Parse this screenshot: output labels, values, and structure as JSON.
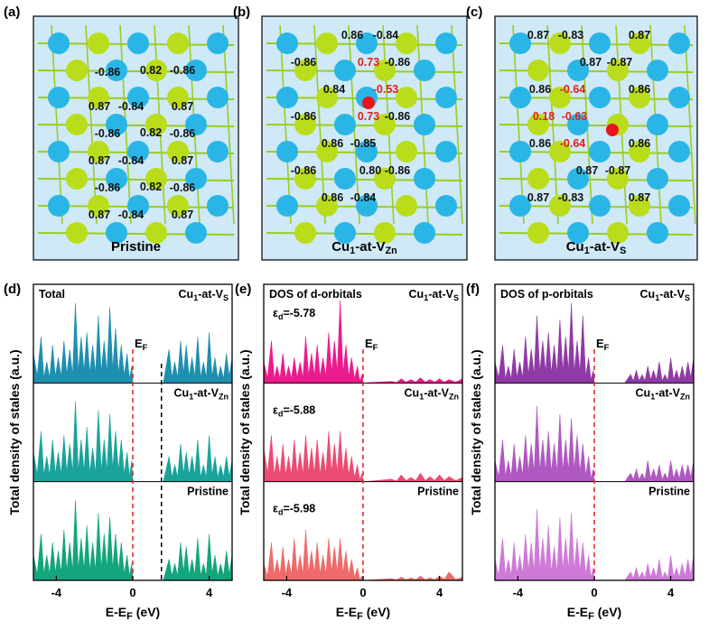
{
  "colors": {
    "zn": "#29b6e6",
    "s": "#b9dd1a",
    "cu": "#e8141c",
    "bond": "#9ccc20",
    "red_label": "#e0201b",
    "ef_line": "#e0201b",
    "vbm_line": "#000000",
    "total": [
      "#1f8fb0",
      "#1aa39a",
      "#14a57c"
    ],
    "d": [
      "#ec1a8c",
      "#ec4b74",
      "#ef6a6a"
    ],
    "p": [
      "#8f3aa6",
      "#b058c2",
      "#cf7ad8"
    ]
  },
  "structures": [
    {
      "panel": "(a)",
      "caption_main": "Pristine",
      "caption_sub": "",
      "labels": [
        {
          "t": "-0.86",
          "red": false
        },
        {
          "t": "0.82",
          "red": false
        },
        {
          "t": "-0.86",
          "red": false
        },
        {
          "t": "0.87",
          "red": false
        },
        {
          "t": "-0.84",
          "red": false
        },
        {
          "t": "0.87",
          "red": false
        },
        {
          "t": "-0.86",
          "red": false
        },
        {
          "t": "0.82",
          "red": false
        },
        {
          "t": "-0.86",
          "red": false
        },
        {
          "t": "0.87",
          "red": false
        },
        {
          "t": "-0.84",
          "red": false
        },
        {
          "t": "0.87",
          "red": false
        },
        {
          "t": "-0.86",
          "red": false
        },
        {
          "t": "0.82",
          "red": false
        },
        {
          "t": "-0.86",
          "red": false
        },
        {
          "t": "0.87",
          "red": false
        },
        {
          "t": "-0.84",
          "red": false
        },
        {
          "t": "0.87",
          "red": false
        }
      ]
    },
    {
      "panel": "(b)",
      "caption_main": "Cu",
      "caption_sub": "1",
      "caption_rest": "-at-V",
      "caption_sub2": "Zn",
      "labels": [
        {
          "t": "0.86",
          "red": false
        },
        {
          "t": "-0.84",
          "red": false
        },
        {
          "t": "-0.86",
          "red": false
        },
        {
          "t": "0.73",
          "red": true
        },
        {
          "t": "-0.86",
          "red": false
        },
        {
          "t": "0.84",
          "red": false
        },
        {
          "t": "-0.53",
          "red": true
        },
        {
          "t": "-0.86",
          "red": false
        },
        {
          "t": "0.73",
          "red": true
        },
        {
          "t": "-0.86",
          "red": false
        },
        {
          "t": "0.86",
          "red": false
        },
        {
          "t": "-0.85",
          "red": false
        },
        {
          "t": "-0.86",
          "red": false
        },
        {
          "t": "0.80",
          "red": false
        },
        {
          "t": "-0.86",
          "red": false
        },
        {
          "t": "0.86",
          "red": false
        },
        {
          "t": "-0.84",
          "red": false
        }
      ]
    },
    {
      "panel": "(c)",
      "caption_main": "Cu",
      "caption_sub": "1",
      "caption_rest": "-at-V",
      "caption_sub2": "S",
      "labels": [
        {
          "t": "0.87",
          "red": false
        },
        {
          "t": "-0.83",
          "red": false
        },
        {
          "t": "0.87",
          "red": false
        },
        {
          "t": "0.87",
          "red": false
        },
        {
          "t": "-0.87",
          "red": false
        },
        {
          "t": "0.86",
          "red": false
        },
        {
          "t": "-0.64",
          "red": true
        },
        {
          "t": "0.86",
          "red": false
        },
        {
          "t": "0.18",
          "red": true
        },
        {
          "t": "-0.63",
          "red": true
        },
        {
          "t": "0.86",
          "red": false
        },
        {
          "t": "-0.64",
          "red": true
        },
        {
          "t": "0.86",
          "red": false
        },
        {
          "t": "0.87",
          "red": false
        },
        {
          "t": "-0.87",
          "red": false
        },
        {
          "t": "0.87",
          "red": false
        },
        {
          "t": "-0.83",
          "red": false
        },
        {
          "t": "0.87",
          "red": false
        }
      ]
    }
  ],
  "chart_data": [
    {
      "type": "area",
      "panel": "(d)",
      "title": "Total",
      "xlabel": "E-E",
      "xlabel_sub": "F",
      "xlabel_unit": " (eV)",
      "ylabel": "Total density of stales (a.u.)",
      "xlim": [
        -5.2,
        5.2
      ],
      "xticks": [
        -4,
        0,
        4
      ],
      "ef_label": "E",
      "ef_sub": "F",
      "ef_x": 0,
      "vbm_x": 1.5,
      "series": [
        {
          "name_main": "Cu",
          "name_sub": "1",
          "name_rest": "-at-V",
          "name_sub2": "S",
          "x": [
            -5.2,
            -4.8,
            -4.5,
            -4.2,
            -3.9,
            -3.6,
            -3.3,
            -3.0,
            -2.7,
            -2.4,
            -2.1,
            -1.8,
            -1.5,
            -1.2,
            -0.9,
            -0.6,
            -0.3,
            -0.05,
            0.0,
            1.6,
            1.9,
            2.2,
            2.5,
            2.8,
            3.1,
            3.4,
            3.7,
            4.0,
            4.3,
            4.6,
            4.9,
            5.2
          ],
          "y": [
            0.35,
            0.55,
            0.25,
            0.45,
            0.3,
            0.5,
            0.4,
            0.95,
            0.55,
            0.6,
            0.45,
            0.8,
            0.5,
            0.9,
            0.65,
            0.45,
            0.35,
            0.2,
            0,
            0,
            0.4,
            0.25,
            0.5,
            0.45,
            0.3,
            0.55,
            0.25,
            0.6,
            0.3,
            0.2,
            0.35,
            0.3
          ]
        },
        {
          "name_main": "Cu",
          "name_sub": "1",
          "name_rest": "-at-V",
          "name_sub2": "Zn",
          "x": [
            -5.2,
            -4.8,
            -4.5,
            -4.2,
            -3.9,
            -3.6,
            -3.3,
            -3.0,
            -2.7,
            -2.4,
            -2.1,
            -1.8,
            -1.5,
            -1.2,
            -0.9,
            -0.6,
            -0.3,
            -0.05,
            0.0,
            1.6,
            1.9,
            2.2,
            2.5,
            2.8,
            3.1,
            3.4,
            3.7,
            4.0,
            4.3,
            4.6,
            4.9,
            5.2
          ],
          "y": [
            0.35,
            0.6,
            0.3,
            0.5,
            0.35,
            0.55,
            0.45,
            0.95,
            0.5,
            0.65,
            0.4,
            0.85,
            0.5,
            0.8,
            0.6,
            0.5,
            0.35,
            0.25,
            0,
            0,
            0.3,
            0.2,
            0.45,
            0.35,
            0.3,
            0.5,
            0.2,
            0.55,
            0.3,
            0.2,
            0.3,
            0.25
          ]
        },
        {
          "name_main": "Pristine",
          "name_sub": "",
          "name_rest": "",
          "name_sub2": "",
          "x": [
            -5.2,
            -4.8,
            -4.5,
            -4.2,
            -3.9,
            -3.6,
            -3.3,
            -3.0,
            -2.7,
            -2.4,
            -2.1,
            -1.8,
            -1.5,
            -1.2,
            -0.9,
            -0.6,
            -0.3,
            -0.05,
            0.0,
            1.6,
            1.9,
            2.2,
            2.5,
            2.8,
            3.1,
            3.4,
            3.7,
            4.0,
            4.3,
            4.6,
            4.9,
            5.2
          ],
          "y": [
            0.3,
            0.55,
            0.3,
            0.45,
            0.35,
            0.6,
            0.45,
            0.95,
            0.5,
            0.65,
            0.45,
            0.8,
            0.55,
            0.75,
            0.55,
            0.45,
            0.3,
            0.2,
            0,
            0,
            0.25,
            0.2,
            0.45,
            0.4,
            0.25,
            0.5,
            0.2,
            0.55,
            0.3,
            0.2,
            0.35,
            0.3
          ]
        }
      ]
    },
    {
      "type": "area",
      "panel": "(e)",
      "title": "DOS of d-orbitals",
      "xlabel": "E-E",
      "xlabel_sub": "F",
      "xlabel_unit": " (eV)",
      "ylabel": "Total density of stales (a.u.)",
      "xlim": [
        -5.2,
        5.2
      ],
      "xticks": [
        -4,
        0,
        4
      ],
      "ef_label": "E",
      "ef_sub": "F",
      "ef_x": 0,
      "series": [
        {
          "name_main": "Cu",
          "name_sub": "1",
          "name_rest": "-at-V",
          "name_sub2": "S",
          "ed": "-5.78",
          "x": [
            -5.2,
            -4.8,
            -4.5,
            -4.2,
            -3.9,
            -3.6,
            -3.3,
            -3.0,
            -2.7,
            -2.4,
            -2.1,
            -1.8,
            -1.5,
            -1.2,
            -0.9,
            -0.6,
            -0.3,
            -0.05,
            0.0,
            1.5,
            2.0,
            2.5,
            3.0,
            3.5,
            4.0,
            4.5,
            5.2
          ],
          "y": [
            0.25,
            0.5,
            0.2,
            0.35,
            0.2,
            0.3,
            0.25,
            0.55,
            0.35,
            0.45,
            0.3,
            0.6,
            0.5,
            0.98,
            0.45,
            0.3,
            0.2,
            0.1,
            0,
            0.02,
            0.05,
            0.04,
            0.06,
            0.04,
            0.05,
            0.04,
            0.05
          ]
        },
        {
          "name_main": "Cu",
          "name_sub": "1",
          "name_rest": "-at-V",
          "name_sub2": "Zn",
          "ed": "-5.88",
          "x": [
            -5.2,
            -4.8,
            -4.5,
            -4.2,
            -3.9,
            -3.6,
            -3.3,
            -3.0,
            -2.7,
            -2.4,
            -2.1,
            -1.8,
            -1.5,
            -1.2,
            -0.9,
            -0.6,
            -0.3,
            -0.05,
            0.0,
            1.5,
            2.0,
            2.5,
            3.0,
            3.5,
            4.0,
            4.5,
            5.2
          ],
          "y": [
            0.4,
            0.55,
            0.3,
            0.45,
            0.3,
            0.5,
            0.35,
            0.55,
            0.4,
            0.5,
            0.35,
            0.6,
            0.45,
            0.6,
            0.4,
            0.3,
            0.2,
            0.1,
            0,
            0.03,
            0.08,
            0.05,
            0.1,
            0.06,
            0.08,
            0.06,
            0.05
          ]
        },
        {
          "name_main": "Pristine",
          "name_sub": "",
          "name_rest": "",
          "name_sub2": "",
          "ed": "-5.98",
          "x": [
            -5.2,
            -4.8,
            -4.5,
            -4.2,
            -3.9,
            -3.6,
            -3.3,
            -3.0,
            -2.7,
            -2.4,
            -2.1,
            -1.8,
            -1.5,
            -1.2,
            -0.9,
            -0.6,
            -0.3,
            -0.05,
            0.0,
            1.5,
            2.0,
            2.5,
            3.0,
            3.5,
            4.0,
            4.5,
            5.2
          ],
          "y": [
            0.2,
            0.45,
            0.25,
            0.4,
            0.25,
            0.5,
            0.3,
            0.6,
            0.35,
            0.45,
            0.3,
            0.5,
            0.4,
            0.5,
            0.35,
            0.25,
            0.15,
            0.05,
            0,
            0.02,
            0.04,
            0.03,
            0.05,
            0.03,
            0.05,
            0.1,
            0.04
          ]
        }
      ]
    },
    {
      "type": "area",
      "panel": "(f)",
      "title": "DOS of p-orbitals",
      "xlabel": "E-E",
      "xlabel_sub": "F",
      "xlabel_unit": " (eV)",
      "ylabel": "Total density of stales (a.u.)",
      "xlim": [
        -5.2,
        5.2
      ],
      "xticks": [
        -4,
        0,
        4
      ],
      "ef_label": "E",
      "ef_sub": "F",
      "ef_x": 0,
      "series": [
        {
          "name_main": "Cu",
          "name_sub": "1",
          "name_rest": "-at-V",
          "name_sub2": "S",
          "x": [
            -5.2,
            -4.8,
            -4.5,
            -4.2,
            -3.9,
            -3.6,
            -3.3,
            -3.0,
            -2.7,
            -2.4,
            -2.1,
            -1.8,
            -1.5,
            -1.2,
            -0.9,
            -0.6,
            -0.3,
            -0.05,
            0.0,
            1.6,
            1.9,
            2.2,
            2.5,
            2.8,
            3.1,
            3.4,
            3.7,
            4.0,
            4.3,
            4.6,
            4.9,
            5.2
          ],
          "y": [
            0.25,
            0.45,
            0.2,
            0.4,
            0.25,
            0.55,
            0.4,
            0.8,
            0.5,
            0.6,
            0.45,
            0.75,
            0.55,
            0.95,
            0.5,
            0.8,
            0.3,
            0.15,
            0,
            0,
            0.1,
            0.15,
            0.1,
            0.2,
            0.15,
            0.25,
            0.1,
            0.3,
            0.15,
            0.2,
            0.25,
            0.3
          ]
        },
        {
          "name_main": "Cu",
          "name_sub": "1",
          "name_rest": "-at-V",
          "name_sub2": "Zn",
          "x": [
            -5.2,
            -4.8,
            -4.5,
            -4.2,
            -3.9,
            -3.6,
            -3.3,
            -3.0,
            -2.7,
            -2.4,
            -2.1,
            -1.8,
            -1.5,
            -1.2,
            -0.9,
            -0.6,
            -0.3,
            -0.05,
            0.0,
            1.6,
            1.9,
            2.2,
            2.5,
            2.8,
            3.1,
            3.4,
            3.7,
            4.0,
            4.3,
            4.6,
            4.9,
            5.2
          ],
          "y": [
            0.25,
            0.5,
            0.25,
            0.45,
            0.3,
            0.55,
            0.45,
            0.9,
            0.5,
            0.6,
            0.45,
            0.8,
            0.5,
            0.75,
            0.55,
            0.45,
            0.3,
            0.15,
            0,
            0,
            0.1,
            0.15,
            0.1,
            0.25,
            0.15,
            0.2,
            0.1,
            0.25,
            0.15,
            0.2,
            0.2,
            0.25
          ]
        },
        {
          "name_main": "Pristine",
          "name_sub": "",
          "name_rest": "",
          "name_sub2": "",
          "x": [
            -5.2,
            -4.8,
            -4.5,
            -4.2,
            -3.9,
            -3.6,
            -3.3,
            -3.0,
            -2.7,
            -2.4,
            -2.1,
            -1.8,
            -1.5,
            -1.2,
            -0.9,
            -0.6,
            -0.3,
            -0.05,
            0.0,
            1.6,
            1.9,
            2.2,
            2.5,
            2.8,
            3.1,
            3.4,
            3.7,
            4.0,
            4.3,
            4.6,
            4.9,
            5.2
          ],
          "y": [
            0.25,
            0.5,
            0.25,
            0.45,
            0.3,
            0.55,
            0.45,
            0.85,
            0.5,
            0.65,
            0.4,
            0.75,
            0.5,
            0.8,
            0.5,
            0.45,
            0.3,
            0.15,
            0,
            0,
            0.1,
            0.15,
            0.1,
            0.2,
            0.15,
            0.25,
            0.1,
            0.3,
            0.15,
            0.2,
            0.25,
            0.3
          ]
        }
      ]
    }
  ]
}
